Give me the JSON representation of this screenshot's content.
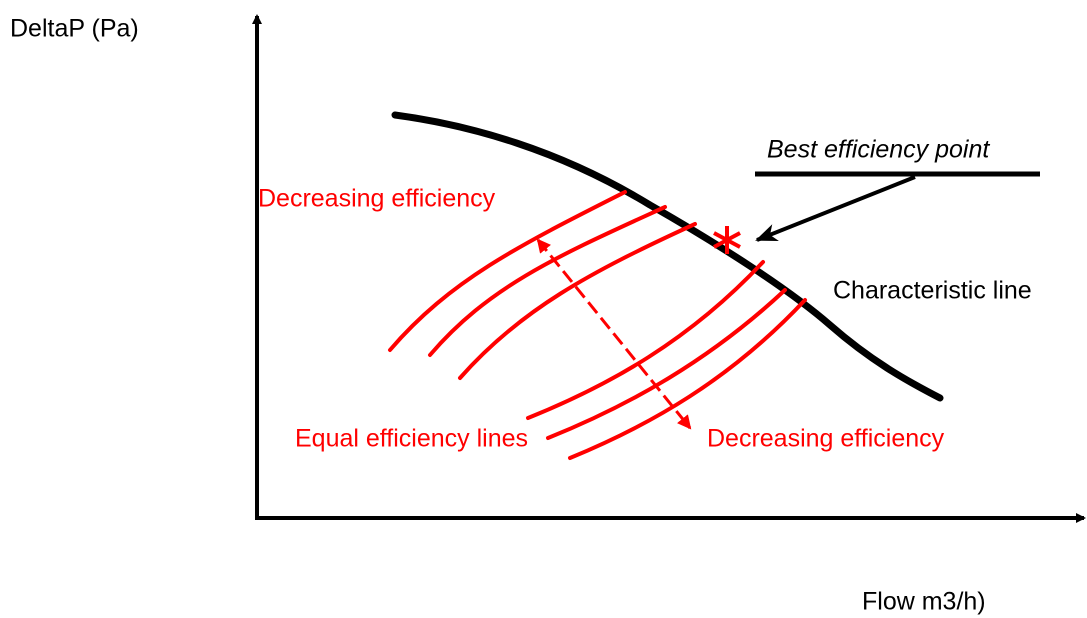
{
  "axes": {
    "y_label": "DeltaP (Pa)",
    "x_label": "Flow m3/h)"
  },
  "annotations": {
    "best_efficiency_point": "Best efficiency point",
    "characteristic_line": "Characteristic line",
    "decreasing_efficiency_upper": "Decreasing efficiency",
    "decreasing_efficiency_lower": "Decreasing efficiency",
    "equal_efficiency_lines": "Equal efficiency lines"
  }
}
